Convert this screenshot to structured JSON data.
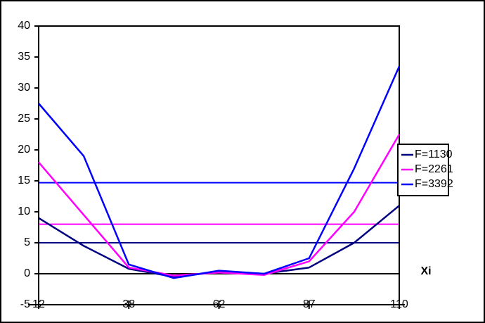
{
  "chart_data": {
    "type": "line",
    "x_label": "Xi",
    "categories": [
      12,
      null,
      38,
      null,
      62,
      null,
      87,
      null,
      110
    ],
    "series": [
      {
        "name": "F=1130",
        "color": "#000080",
        "values": [
          9,
          4.5,
          0.8,
          -0.5,
          0.3,
          0,
          1,
          5,
          11
        ]
      },
      {
        "name": "F=2261",
        "color": "#ff00ff",
        "values": [
          18,
          9.5,
          1,
          -0.3,
          0.2,
          -0.2,
          2,
          10,
          22.5
        ]
      },
      {
        "name": "F=3392",
        "color": "#0000ff",
        "values": [
          27.5,
          19,
          1.5,
          -0.7,
          0.5,
          0,
          2.5,
          17,
          33.5
        ]
      }
    ],
    "reference_lines": [
      {
        "value": 5,
        "color": "#000080"
      },
      {
        "value": 8,
        "color": "#ff00ff"
      },
      {
        "value": 14.7,
        "color": "#0000ff"
      }
    ],
    "ylim": [
      -5,
      40
    ],
    "yticks": [
      -5,
      0,
      5,
      10,
      15,
      20,
      25,
      30,
      35,
      40
    ],
    "legend": "right"
  }
}
